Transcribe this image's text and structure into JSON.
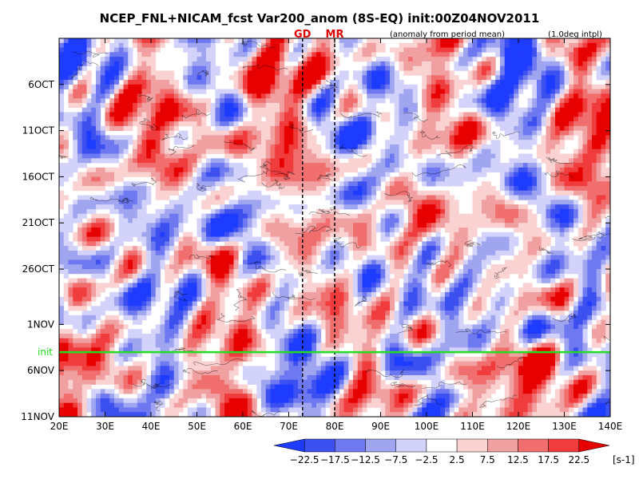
{
  "chart_data": {
    "type": "heatmap",
    "title": "NCEP_FNL+NICAM_fcst Var200_anom (8S-EQ) init:00Z04NOV2011",
    "subtitle": "(anomaly from period mean)",
    "note": "(1.0deg intpl)",
    "xlabel": "",
    "ylabel": "",
    "x_ticks": [
      {
        "value": 20,
        "label": "20E"
      },
      {
        "value": 30,
        "label": "30E"
      },
      {
        "value": 40,
        "label": "40E"
      },
      {
        "value": 50,
        "label": "50E"
      },
      {
        "value": 60,
        "label": "60E"
      },
      {
        "value": 70,
        "label": "70E"
      },
      {
        "value": 80,
        "label": "80E"
      },
      {
        "value": 90,
        "label": "90E"
      },
      {
        "value": 100,
        "label": "100E"
      },
      {
        "value": 110,
        "label": "110E"
      },
      {
        "value": 120,
        "label": "120E"
      },
      {
        "value": 130,
        "label": "130E"
      },
      {
        "value": 140,
        "label": "140E"
      }
    ],
    "xlim": [
      20,
      140
    ],
    "y_ticks": [
      {
        "value": "2011-10-06",
        "label": "6OCT"
      },
      {
        "value": "2011-10-11",
        "label": "11OCT"
      },
      {
        "value": "2011-10-16",
        "label": "16OCT"
      },
      {
        "value": "2011-10-21",
        "label": "21OCT"
      },
      {
        "value": "2011-10-26",
        "label": "26OCT"
      },
      {
        "value": "2011-11-01",
        "label": "1NOV"
      },
      {
        "value": "2011-11-06",
        "label": "6NOV"
      },
      {
        "value": "2011-11-11",
        "label": "11NOV"
      }
    ],
    "ylim": [
      "2011-10-01",
      "2011-11-11"
    ],
    "y_direction": "time increases downward",
    "reference_lines": [
      {
        "orientation": "vertical",
        "x": 73,
        "label": "GD",
        "style": "dashed",
        "color": "#000000",
        "label_color": "#e00000"
      },
      {
        "orientation": "vertical",
        "x": 80,
        "label": "MR",
        "style": "dashed",
        "color": "#000000",
        "label_color": "#e00000"
      },
      {
        "orientation": "horizontal",
        "y": "2011-11-04",
        "label": "init",
        "style": "solid",
        "color": "#22dd22",
        "label_color": "#22dd22"
      }
    ],
    "colorbar": {
      "unit": "[s-1]",
      "levels": [
        "-22.5",
        "-17.5",
        "-12.5",
        "-7.5",
        "-2.5",
        "2.5",
        "7.5",
        "12.5",
        "17.5",
        "22.5"
      ],
      "colors": [
        "#1e3cff",
        "#3c50f0",
        "#6e78f0",
        "#a0a5f0",
        "#d2d2fa",
        "#ffffff",
        "#fad2d2",
        "#f0a0a0",
        "#f06e6e",
        "#f03c3c",
        "#e60000"
      ]
    },
    "field_pattern": "alternating red/blue diagonal streaks, positive anomalies concentrated near 50E-70E early October and along 110E-135E after init"
  }
}
